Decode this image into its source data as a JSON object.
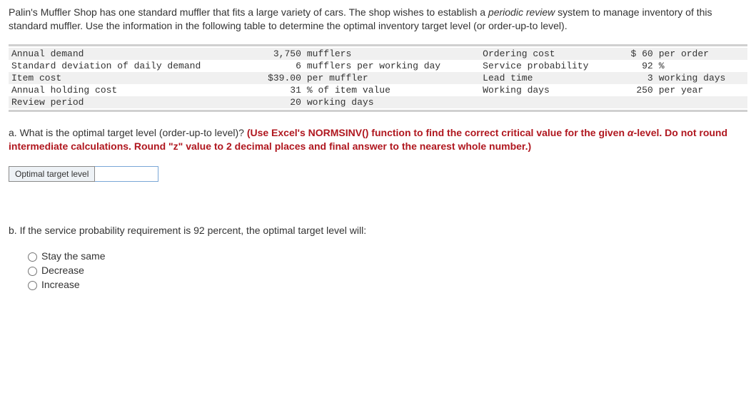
{
  "problem": {
    "text_before_italic": "Palin's Muffler Shop has one standard muffler that fits a large variety of cars. The shop wishes to establish a ",
    "italic_phrase": "periodic review",
    "text_after_italic": " system to manage inventory of this standard muffler. Use the information in the following table to determine the optimal inventory target level (or order-up-to level)."
  },
  "table": {
    "rows": [
      {
        "shade": true,
        "l1": "Annual demand",
        "v1": "3,750",
        "u1": "mufflers",
        "l2": "Ordering cost",
        "v2": "$ 60",
        "u2": "per order"
      },
      {
        "shade": false,
        "l1": "Standard deviation of daily demand",
        "v1": "6",
        "u1": "mufflers per working day",
        "l2": "Service probability",
        "v2": "92",
        "u2": "%"
      },
      {
        "shade": true,
        "l1": "Item cost",
        "v1": "$39.00",
        "u1": "per muffler",
        "l2": "Lead time",
        "v2": "3",
        "u2": "working days"
      },
      {
        "shade": false,
        "l1": "Annual holding cost",
        "v1": "31",
        "u1": "% of item value",
        "l2": "Working days",
        "v2": "250",
        "u2": "per year"
      },
      {
        "shade": true,
        "l1": "Review period",
        "v1": "20",
        "u1": "working days",
        "l2": "",
        "v2": "",
        "u2": ""
      }
    ]
  },
  "part_a": {
    "lead": "a. What is the optimal target level (order-up-to level)? ",
    "bold_before_alpha": "(Use Excel's NORMSINV() function to find the correct critical value for the given ",
    "alpha": "α",
    "bold_after_alpha": "-level. Do not round intermediate calculations. Round \"z\" value to 2 decimal places and final answer to the nearest whole number.)"
  },
  "answer": {
    "label": "Optimal target level",
    "value": ""
  },
  "part_b": {
    "text": "b. If the service probability requirement is 92 percent, the optimal target level will:",
    "options": [
      "Stay the same",
      "Decrease",
      "Increase"
    ]
  },
  "colors": {
    "table_border": "#d0d0d0",
    "shade_bg": "#f0f0f0",
    "red_text": "#b0171f",
    "label_bg": "#eef2f6",
    "label_border": "#8a8a8a",
    "input_border": "#7aa7d6"
  }
}
